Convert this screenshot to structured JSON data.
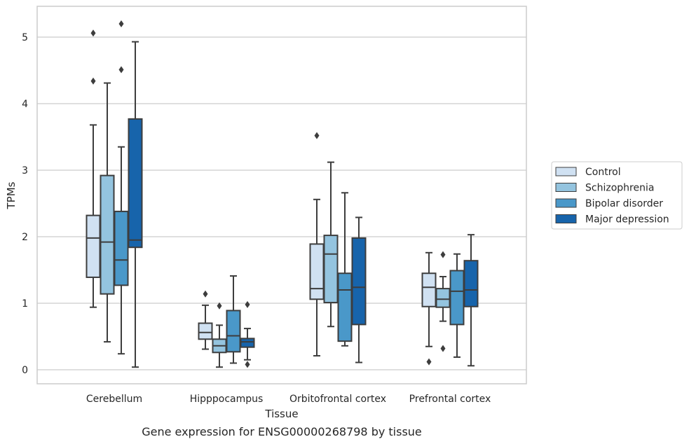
{
  "chart_data": {
    "type": "box",
    "xlabel": "Tissue",
    "ylabel": "TPMs",
    "caption": "Gene expression for ENSG00000268798 by tissue",
    "ylim": [
      -0.2,
      5.45
    ],
    "yticks": [
      "0",
      "1",
      "2",
      "3",
      "4",
      "5"
    ],
    "grid": true,
    "legend_position": "right",
    "categories": [
      "Cerebellum",
      "Hipppocampus",
      "Orbitofrontal cortex",
      "Prefrontal cortex"
    ],
    "series": [
      {
        "name": "Control",
        "color": "#d0e1f2",
        "boxes": [
          {
            "whislo": 0.94,
            "q1": 1.39,
            "med": 1.98,
            "q3": 2.32,
            "whishi": 3.68,
            "fliers": [
              4.34,
              5.06
            ]
          },
          {
            "whislo": 0.31,
            "q1": 0.46,
            "med": 0.56,
            "q3": 0.7,
            "whishi": 0.97,
            "fliers": [
              1.14
            ]
          },
          {
            "whislo": 0.21,
            "q1": 1.06,
            "med": 1.22,
            "q3": 1.89,
            "whishi": 2.56,
            "fliers": [
              3.52
            ]
          },
          {
            "whislo": 0.35,
            "q1": 0.95,
            "med": 1.24,
            "q3": 1.45,
            "whishi": 1.76,
            "fliers": [
              0.12
            ]
          }
        ]
      },
      {
        "name": "Schizophrenia",
        "color": "#94c4df",
        "boxes": [
          {
            "whislo": 0.42,
            "q1": 1.14,
            "med": 1.92,
            "q3": 2.92,
            "whishi": 4.31,
            "fliers": []
          },
          {
            "whislo": 0.04,
            "q1": 0.26,
            "med": 0.36,
            "q3": 0.46,
            "whishi": 0.67,
            "fliers": [
              0.96
            ]
          },
          {
            "whislo": 0.65,
            "q1": 1.01,
            "med": 1.74,
            "q3": 2.02,
            "whishi": 3.12,
            "fliers": []
          },
          {
            "whislo": 0.73,
            "q1": 0.94,
            "med": 1.06,
            "q3": 1.22,
            "whishi": 1.4,
            "fliers": [
              0.32,
              1.73
            ]
          }
        ]
      },
      {
        "name": "Bipolar disorder",
        "color": "#4a98c9",
        "boxes": [
          {
            "whislo": 0.24,
            "q1": 1.27,
            "med": 1.65,
            "q3": 2.38,
            "whishi": 3.35,
            "fliers": [
              4.51,
              5.2
            ]
          },
          {
            "whislo": 0.1,
            "q1": 0.27,
            "med": 0.51,
            "q3": 0.89,
            "whishi": 1.41,
            "fliers": []
          },
          {
            "whislo": 0.36,
            "q1": 0.43,
            "med": 1.2,
            "q3": 1.45,
            "whishi": 2.66,
            "fliers": []
          },
          {
            "whislo": 0.19,
            "q1": 0.68,
            "med": 1.18,
            "q3": 1.49,
            "whishi": 1.74,
            "fliers": []
          }
        ]
      },
      {
        "name": "Major depression",
        "color": "#1764ab",
        "boxes": [
          {
            "whislo": 0.04,
            "q1": 1.84,
            "med": 1.95,
            "q3": 3.77,
            "whishi": 4.93,
            "fliers": []
          },
          {
            "whislo": 0.15,
            "q1": 0.34,
            "med": 0.42,
            "q3": 0.47,
            "whishi": 0.62,
            "fliers": [
              0.08,
              0.98
            ]
          },
          {
            "whislo": 0.11,
            "q1": 0.68,
            "med": 1.24,
            "q3": 1.98,
            "whishi": 2.29,
            "fliers": []
          },
          {
            "whislo": 0.06,
            "q1": 0.95,
            "med": 1.2,
            "q3": 1.64,
            "whishi": 2.03,
            "fliers": []
          }
        ]
      }
    ]
  }
}
